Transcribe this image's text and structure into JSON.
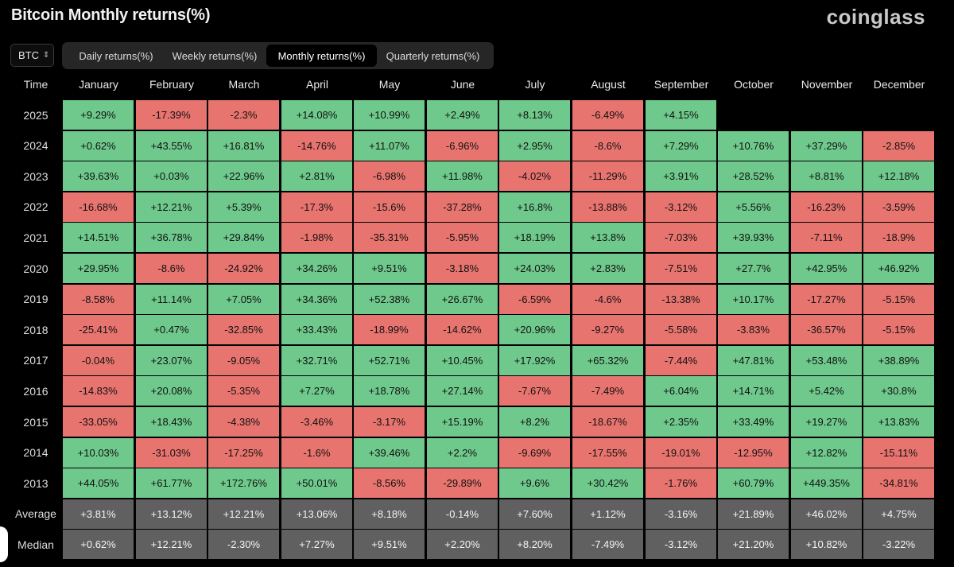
{
  "header": {
    "title": "Bitcoin Monthly returns(%)",
    "brand": "coinglass"
  },
  "controls": {
    "asset": "BTC",
    "tabs": [
      "Daily returns(%)",
      "Weekly returns(%)",
      "Monthly returns(%)",
      "Quarterly returns(%)"
    ],
    "active_tab": "Monthly returns(%)"
  },
  "colors": {
    "positive": "#6fc98c",
    "negative": "#e8746f",
    "stat": "#606060",
    "background": "#000000"
  },
  "chart_data": {
    "type": "table",
    "title": "Bitcoin Monthly returns(%)",
    "row_header": "Time",
    "columns": [
      "January",
      "February",
      "March",
      "April",
      "May",
      "June",
      "July",
      "August",
      "September",
      "October",
      "November",
      "December"
    ],
    "rows": [
      {
        "label": "2025",
        "values": [
          "+9.29%",
          "-17.39%",
          "-2.3%",
          "+14.08%",
          "+10.99%",
          "+2.49%",
          "+8.13%",
          "-6.49%",
          "+4.15%",
          "",
          "",
          ""
        ]
      },
      {
        "label": "2024",
        "values": [
          "+0.62%",
          "+43.55%",
          "+16.81%",
          "-14.76%",
          "+11.07%",
          "-6.96%",
          "+2.95%",
          "-8.6%",
          "+7.29%",
          "+10.76%",
          "+37.29%",
          "-2.85%"
        ]
      },
      {
        "label": "2023",
        "values": [
          "+39.63%",
          "+0.03%",
          "+22.96%",
          "+2.81%",
          "-6.98%",
          "+11.98%",
          "-4.02%",
          "-11.29%",
          "+3.91%",
          "+28.52%",
          "+8.81%",
          "+12.18%"
        ]
      },
      {
        "label": "2022",
        "values": [
          "-16.68%",
          "+12.21%",
          "+5.39%",
          "-17.3%",
          "-15.6%",
          "-37.28%",
          "+16.8%",
          "-13.88%",
          "-3.12%",
          "+5.56%",
          "-16.23%",
          "-3.59%"
        ]
      },
      {
        "label": "2021",
        "values": [
          "+14.51%",
          "+36.78%",
          "+29.84%",
          "-1.98%",
          "-35.31%",
          "-5.95%",
          "+18.19%",
          "+13.8%",
          "-7.03%",
          "+39.93%",
          "-7.11%",
          "-18.9%"
        ]
      },
      {
        "label": "2020",
        "values": [
          "+29.95%",
          "-8.6%",
          "-24.92%",
          "+34.26%",
          "+9.51%",
          "-3.18%",
          "+24.03%",
          "+2.83%",
          "-7.51%",
          "+27.7%",
          "+42.95%",
          "+46.92%"
        ]
      },
      {
        "label": "2019",
        "values": [
          "-8.58%",
          "+11.14%",
          "+7.05%",
          "+34.36%",
          "+52.38%",
          "+26.67%",
          "-6.59%",
          "-4.6%",
          "-13.38%",
          "+10.17%",
          "-17.27%",
          "-5.15%"
        ]
      },
      {
        "label": "2018",
        "values": [
          "-25.41%",
          "+0.47%",
          "-32.85%",
          "+33.43%",
          "-18.99%",
          "-14.62%",
          "+20.96%",
          "-9.27%",
          "-5.58%",
          "-3.83%",
          "-36.57%",
          "-5.15%"
        ]
      },
      {
        "label": "2017",
        "values": [
          "-0.04%",
          "+23.07%",
          "-9.05%",
          "+32.71%",
          "+52.71%",
          "+10.45%",
          "+17.92%",
          "+65.32%",
          "-7.44%",
          "+47.81%",
          "+53.48%",
          "+38.89%"
        ]
      },
      {
        "label": "2016",
        "values": [
          "-14.83%",
          "+20.08%",
          "-5.35%",
          "+7.27%",
          "+18.78%",
          "+27.14%",
          "-7.67%",
          "-7.49%",
          "+6.04%",
          "+14.71%",
          "+5.42%",
          "+30.8%"
        ]
      },
      {
        "label": "2015",
        "values": [
          "-33.05%",
          "+18.43%",
          "-4.38%",
          "-3.46%",
          "-3.17%",
          "+15.19%",
          "+8.2%",
          "-18.67%",
          "+2.35%",
          "+33.49%",
          "+19.27%",
          "+13.83%"
        ]
      },
      {
        "label": "2014",
        "values": [
          "+10.03%",
          "-31.03%",
          "-17.25%",
          "-1.6%",
          "+39.46%",
          "+2.2%",
          "-9.69%",
          "-17.55%",
          "-19.01%",
          "-12.95%",
          "+12.82%",
          "-15.11%"
        ]
      },
      {
        "label": "2013",
        "values": [
          "+44.05%",
          "+61.77%",
          "+172.76%",
          "+50.01%",
          "-8.56%",
          "-29.89%",
          "+9.6%",
          "+30.42%",
          "-1.76%",
          "+60.79%",
          "+449.35%",
          "-34.81%"
        ]
      }
    ],
    "summary_rows": [
      {
        "label": "Average",
        "values": [
          "+3.81%",
          "+13.12%",
          "+12.21%",
          "+13.06%",
          "+8.18%",
          "-0.14%",
          "+7.60%",
          "+1.12%",
          "-3.16%",
          "+21.89%",
          "+46.02%",
          "+4.75%"
        ]
      },
      {
        "label": "Median",
        "values": [
          "+0.62%",
          "+12.21%",
          "-2.30%",
          "+7.27%",
          "+9.51%",
          "+2.20%",
          "+8.20%",
          "-7.49%",
          "-3.12%",
          "+21.20%",
          "+10.82%",
          "-3.22%"
        ]
      }
    ]
  }
}
